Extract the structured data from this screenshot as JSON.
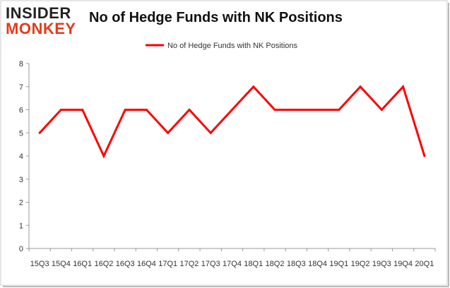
{
  "logo": {
    "top": "INSIDER",
    "bottom": "MONKEY"
  },
  "chart_data": {
    "type": "line",
    "title": "No of Hedge Funds with NK Positions",
    "xlabel": "",
    "ylabel": "",
    "ylim": [
      0,
      8
    ],
    "yticks": [
      0,
      1,
      2,
      3,
      4,
      5,
      6,
      7,
      8
    ],
    "grid": false,
    "legend_position": "top",
    "categories": [
      "15Q3",
      "15Q4",
      "16Q1",
      "16Q2",
      "16Q3",
      "16Q4",
      "17Q1",
      "17Q2",
      "17Q3",
      "17Q4",
      "18Q1",
      "18Q2",
      "18Q3",
      "18Q4",
      "19Q1",
      "19Q2",
      "19Q3",
      "19Q4",
      "20Q1"
    ],
    "series": [
      {
        "name": "No of Hedge Funds with NK Positions",
        "color": "#ff0000",
        "values": [
          5,
          6,
          6,
          4,
          6,
          6,
          5,
          6,
          5,
          6,
          7,
          6,
          6,
          6,
          6,
          7,
          6,
          7,
          4
        ]
      }
    ]
  }
}
